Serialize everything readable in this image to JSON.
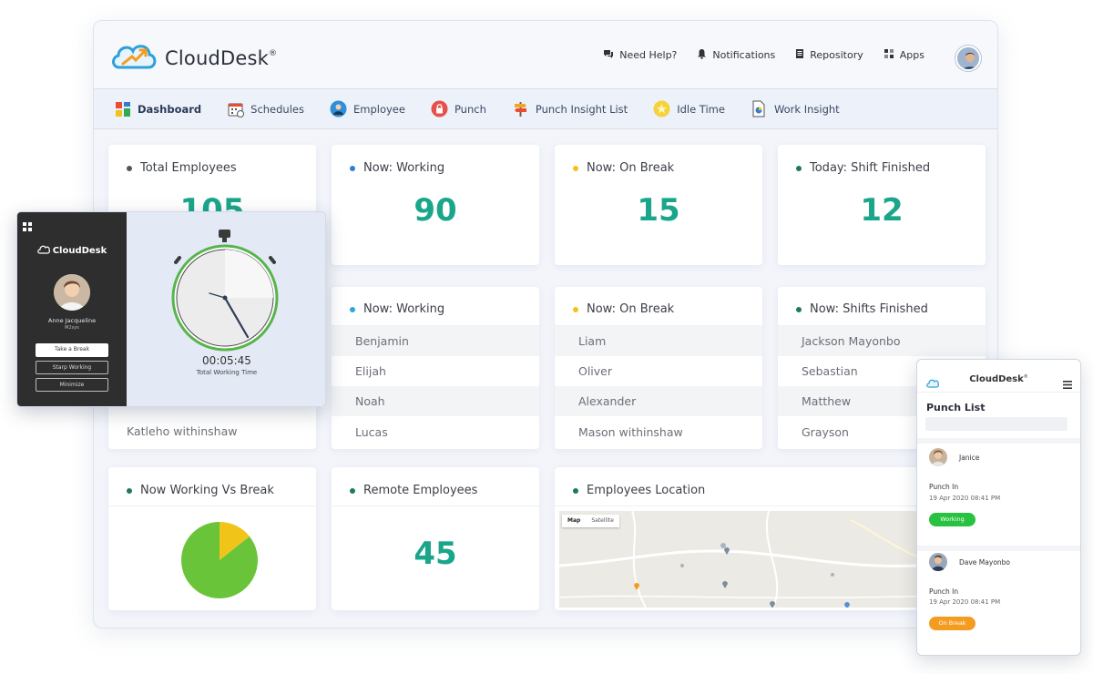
{
  "app": {
    "brand": "CloudDesk",
    "brand_mark": "®"
  },
  "top_links": [
    {
      "label": "Need Help?",
      "icon": "chat-icon"
    },
    {
      "label": "Notifications",
      "icon": "bell-icon"
    },
    {
      "label": "Repository",
      "icon": "document-icon"
    },
    {
      "label": "Apps",
      "icon": "grid-icon"
    }
  ],
  "nav": [
    {
      "label": "Dashboard",
      "icon": "dashboard-icon",
      "active": true
    },
    {
      "label": "Schedules",
      "icon": "calendar-icon"
    },
    {
      "label": "Employee",
      "icon": "employee-icon"
    },
    {
      "label": "Punch",
      "icon": "lock-icon"
    },
    {
      "label": "Punch Insight List",
      "icon": "signpost-icon"
    },
    {
      "label": "Idle Time",
      "icon": "star-icon"
    },
    {
      "label": "Work Insight",
      "icon": "file-icon"
    }
  ],
  "stats": [
    {
      "label": "Total Employees",
      "value": "105",
      "color": "#555555"
    },
    {
      "label": "Now: Working",
      "value": "90",
      "color": "#2f7fd1"
    },
    {
      "label": "Now: On Break",
      "value": "15",
      "color": "#f2c21b"
    },
    {
      "label": "Today: Shift Finished",
      "value": "12",
      "color": "#1e7a5a"
    }
  ],
  "lists": {
    "left": {
      "rows": [
        "Katleho withinshaw"
      ]
    },
    "working": {
      "title": "Now: Working",
      "color": "#29a9d8",
      "rows": [
        "Benjamin",
        "Elijah",
        "Noah",
        "Lucas"
      ]
    },
    "break": {
      "title": "Now: On Break",
      "color": "#f2c21b",
      "rows": [
        "Liam",
        "Oliver",
        "Alexander",
        "Mason withinshaw"
      ]
    },
    "finished": {
      "title": "Now: Shifts Finished",
      "color": "#1e7a5a",
      "rows": [
        "Jackson Mayonbo",
        "Sebastian",
        "Matthew",
        "Grayson"
      ]
    }
  },
  "bottom": {
    "pie_title": "Now Working Vs Break",
    "remote_title": "Remote Employees",
    "remote_value": "45",
    "location_title": "Employees Location",
    "map_tabs": [
      "Map",
      "Satellite"
    ]
  },
  "pie": {
    "working": 85.7,
    "break": 14.3,
    "colors": {
      "working": "#6ac43a",
      "break": "#f0c419"
    }
  },
  "timer": {
    "brand": "CloudDesk",
    "user_name": "Anne Jacqueline",
    "user_org": "M2sys",
    "time": "00:05:45",
    "caption": "Total Working Time",
    "buttons": [
      "Take a Break",
      "Starp Working",
      "Minimize"
    ]
  },
  "phone": {
    "brand": "CloudDesk",
    "brand_mark": "®",
    "title": "Punch List",
    "entries": [
      {
        "name": "Janice",
        "action": "Punch In",
        "time": "19 Apr 2020 08:41 PM",
        "status": "Working",
        "status_color": "#27c23f"
      },
      {
        "name": "Dave Mayonbo",
        "action": "Punch In",
        "time": "19 Apr 2020 08:41 PM",
        "status": "On Break",
        "status_color": "#f39c1f"
      }
    ]
  },
  "colors": {
    "accent": "#1aa68a",
    "nav_bg": "#edf1f9"
  }
}
